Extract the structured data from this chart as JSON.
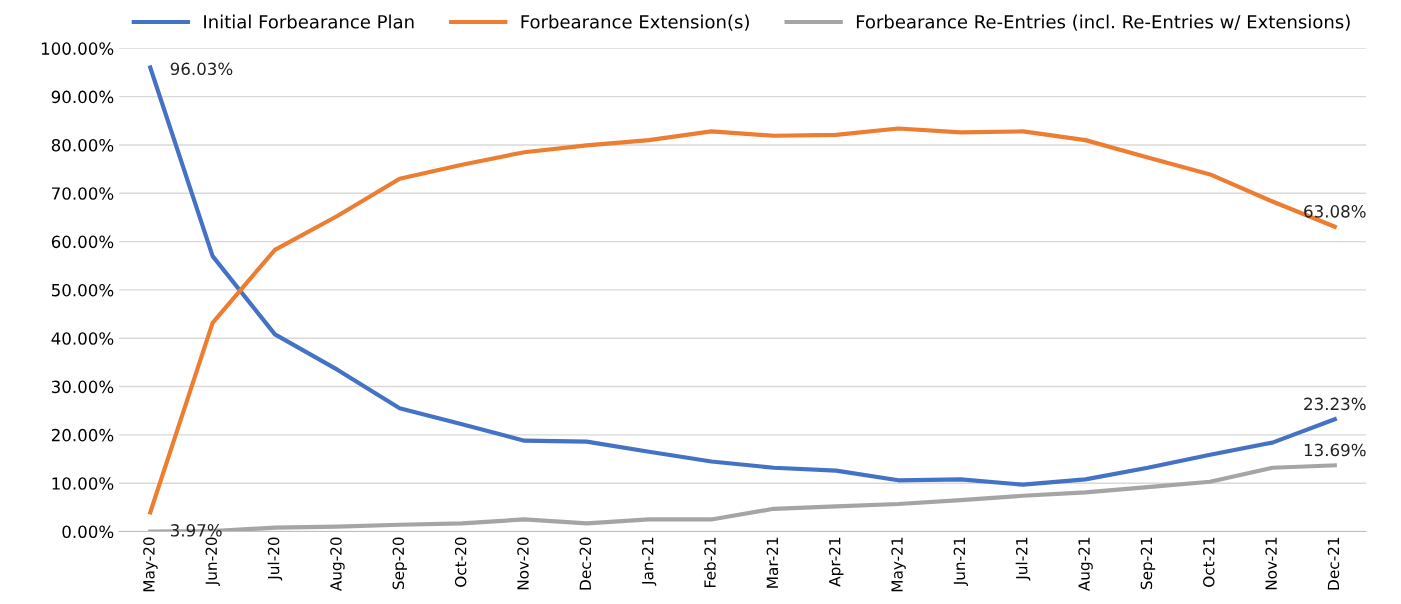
{
  "chart_data": {
    "type": "line",
    "categories": [
      "May-20",
      "Jun-20",
      "Jul-20",
      "Aug-20",
      "Sep-20",
      "Oct-20",
      "Nov-20",
      "Dec-20",
      "Jan-21",
      "Feb-21",
      "Mar-21",
      "Apr-21",
      "May-21",
      "Jun-21",
      "Jul-21",
      "Aug-21",
      "Sep-21",
      "Oct-21",
      "Nov-21",
      "Dec-21"
    ],
    "series": [
      {
        "name": "Initial Forbearance Plan",
        "color": "#4472c4",
        "values": [
          96.03,
          57,
          40.8,
          33.5,
          25.5,
          22.2,
          18.8,
          18.6,
          16.5,
          14.5,
          13.2,
          12.6,
          10.6,
          10.8,
          9.7,
          10.8,
          13.2,
          15.9,
          18.4,
          23.23
        ],
        "value_labels": [
          "96.03%",
          null,
          null,
          null,
          null,
          null,
          null,
          null,
          null,
          null,
          null,
          null,
          null,
          null,
          null,
          null,
          null,
          null,
          null,
          "23.23%"
        ]
      },
      {
        "name": "Forbearance Extension(s)",
        "color": "#ed7d31",
        "values": [
          3.97,
          43.2,
          58.3,
          65.3,
          73.0,
          75.9,
          78.5,
          79.9,
          81.0,
          82.8,
          81.9,
          82.1,
          83.4,
          82.6,
          82.8,
          81.0,
          77.4,
          73.9,
          68.3,
          63.08
        ],
        "value_labels": [
          "3.97%",
          null,
          null,
          null,
          null,
          null,
          null,
          null,
          null,
          null,
          null,
          null,
          null,
          null,
          null,
          null,
          null,
          null,
          null,
          "63.08%"
        ]
      },
      {
        "name": "Forbearance Re-Entries (incl. Re-Entries w/ Extensions)",
        "color": "#a5a5a5",
        "values": [
          0,
          0.1,
          0.8,
          1.0,
          1.4,
          1.7,
          2.5,
          1.7,
          2.5,
          2.5,
          4.7,
          5.2,
          5.7,
          6.5,
          7.4,
          8.1,
          9.2,
          10.3,
          13.2,
          13.69
        ],
        "value_labels": [
          null,
          null,
          null,
          null,
          null,
          null,
          null,
          null,
          null,
          null,
          null,
          null,
          null,
          null,
          null,
          null,
          null,
          null,
          null,
          "13.69%"
        ]
      }
    ],
    "ylim": [
      0,
      100
    ],
    "yticks": [
      {
        "value": 0,
        "label": "0.00%"
      },
      {
        "value": 10,
        "label": "10.00%"
      },
      {
        "value": 20,
        "label": "20.00%"
      },
      {
        "value": 30,
        "label": "30.00%"
      },
      {
        "value": 40,
        "label": "40.00%"
      },
      {
        "value": 50,
        "label": "50.00%"
      },
      {
        "value": 60,
        "label": "60.00%"
      },
      {
        "value": 70,
        "label": "70.00%"
      },
      {
        "value": 80,
        "label": "80.00%"
      },
      {
        "value": 90,
        "label": "90.00%"
      },
      {
        "value": 100,
        "label": "100.00%"
      }
    ],
    "grid": "y",
    "legend": "top",
    "marker": "none",
    "line_style": "solid"
  }
}
